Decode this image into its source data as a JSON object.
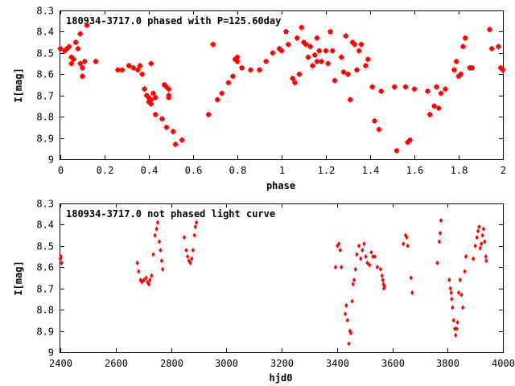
{
  "chart_data": [
    {
      "type": "scatter",
      "title": "180934-3717.0 phased with P=125.60day",
      "xlabel": "phase",
      "ylabel": "I[mag]",
      "xlim": [
        0,
        2
      ],
      "ylim": [
        9,
        8.3
      ],
      "y_inverted": true,
      "xticks": [
        "0",
        "0.2",
        "0.4",
        "0.6",
        "0.8",
        "1",
        "1.2",
        "1.4",
        "1.6",
        "1.8",
        "2"
      ],
      "yticks": [
        "8.3",
        "8.4",
        "8.5",
        "8.6",
        "8.7",
        "8.8",
        "8.9",
        "9"
      ],
      "grid": false,
      "marker_color": "#ff0000",
      "marker": "filled-square-star",
      "points": [
        [
          0.0,
          8.48
        ],
        [
          0.02,
          8.49
        ],
        [
          0.03,
          8.48
        ],
        [
          0.04,
          8.47
        ],
        [
          0.05,
          8.52
        ],
        [
          0.05,
          8.55
        ],
        [
          0.06,
          8.53
        ],
        [
          0.07,
          8.45
        ],
        [
          0.09,
          8.55
        ],
        [
          0.08,
          8.48
        ],
        [
          0.09,
          8.41
        ],
        [
          0.1,
          8.57
        ],
        [
          0.1,
          8.61
        ],
        [
          0.11,
          8.54
        ],
        [
          0.12,
          8.37
        ],
        [
          0.16,
          8.54
        ],
        [
          0.26,
          8.58
        ],
        [
          0.28,
          8.58
        ],
        [
          0.31,
          8.56
        ],
        [
          0.33,
          8.57
        ],
        [
          0.35,
          8.58
        ],
        [
          0.36,
          8.56
        ],
        [
          0.37,
          8.6
        ],
        [
          0.38,
          8.67
        ],
        [
          0.39,
          8.7
        ],
        [
          0.4,
          8.71
        ],
        [
          0.4,
          8.73
        ],
        [
          0.41,
          8.72
        ],
        [
          0.41,
          8.74
        ],
        [
          0.41,
          8.55
        ],
        [
          0.42,
          8.69
        ],
        [
          0.43,
          8.71
        ],
        [
          0.43,
          8.79
        ],
        [
          0.46,
          8.81
        ],
        [
          0.47,
          8.65
        ],
        [
          0.48,
          8.66
        ],
        [
          0.48,
          8.85
        ],
        [
          0.49,
          8.67
        ],
        [
          0.49,
          8.7
        ],
        [
          0.49,
          8.71
        ],
        [
          0.51,
          8.87
        ],
        [
          0.52,
          8.93
        ],
        [
          0.55,
          8.91
        ],
        [
          0.67,
          8.79
        ],
        [
          0.69,
          8.46
        ],
        [
          0.71,
          8.72
        ],
        [
          0.73,
          8.69
        ],
        [
          0.76,
          8.64
        ],
        [
          0.78,
          8.61
        ],
        [
          0.79,
          8.53
        ],
        [
          0.8,
          8.54
        ],
        [
          0.8,
          8.52
        ],
        [
          0.82,
          8.57
        ],
        [
          0.86,
          8.58
        ],
        [
          0.9,
          8.58
        ],
        [
          0.93,
          8.54
        ],
        [
          0.96,
          8.5
        ],
        [
          0.99,
          8.48
        ],
        [
          1.0,
          8.49
        ],
        [
          1.02,
          8.4
        ],
        [
          1.03,
          8.46
        ],
        [
          1.05,
          8.62
        ],
        [
          1.06,
          8.64
        ],
        [
          1.07,
          8.43
        ],
        [
          1.08,
          8.6
        ],
        [
          1.09,
          8.38
        ],
        [
          1.1,
          8.45
        ],
        [
          1.11,
          8.46
        ],
        [
          1.12,
          8.52
        ],
        [
          1.13,
          8.47
        ],
        [
          1.14,
          8.56
        ],
        [
          1.15,
          8.51
        ],
        [
          1.16,
          8.54
        ],
        [
          1.16,
          8.43
        ],
        [
          1.17,
          8.49
        ],
        [
          1.18,
          8.54
        ],
        [
          1.2,
          8.49
        ],
        [
          1.21,
          8.55
        ],
        [
          1.22,
          8.4
        ],
        [
          1.23,
          8.49
        ],
        [
          1.24,
          8.63
        ],
        [
          1.27,
          8.52
        ],
        [
          1.28,
          8.59
        ],
        [
          1.29,
          8.42
        ],
        [
          1.3,
          8.6
        ],
        [
          1.31,
          8.72
        ],
        [
          1.32,
          8.45
        ],
        [
          1.33,
          8.46
        ],
        [
          1.34,
          8.58
        ],
        [
          1.35,
          8.49
        ],
        [
          1.36,
          8.46
        ],
        [
          1.38,
          8.56
        ],
        [
          1.39,
          8.53
        ],
        [
          1.41,
          8.66
        ],
        [
          1.42,
          8.82
        ],
        [
          1.44,
          8.86
        ],
        [
          1.45,
          8.68
        ],
        [
          1.51,
          8.66
        ],
        [
          1.52,
          8.96
        ],
        [
          1.56,
          8.66
        ],
        [
          1.57,
          8.92
        ],
        [
          1.58,
          8.91
        ],
        [
          1.6,
          8.67
        ],
        [
          1.66,
          8.68
        ],
        [
          1.67,
          8.79
        ],
        [
          1.69,
          8.75
        ],
        [
          1.7,
          8.66
        ],
        [
          1.71,
          8.76
        ],
        [
          1.72,
          8.69
        ],
        [
          1.74,
          8.67
        ],
        [
          1.78,
          8.58
        ],
        [
          1.79,
          8.54
        ],
        [
          1.8,
          8.61
        ],
        [
          1.81,
          8.6
        ],
        [
          1.82,
          8.47
        ],
        [
          1.83,
          8.43
        ],
        [
          1.85,
          8.57
        ],
        [
          1.86,
          8.57
        ],
        [
          1.94,
          8.39
        ],
        [
          1.95,
          8.48
        ],
        [
          1.98,
          8.47
        ],
        [
          1.99,
          8.57
        ],
        [
          2.0,
          8.58
        ]
      ]
    },
    {
      "type": "scatter",
      "title": "180934-3717.0 not phased light curve",
      "xlabel": "hjd0",
      "ylabel": "I[mag]",
      "xlim": [
        2400,
        4000
      ],
      "ylim": [
        9,
        8.3
      ],
      "y_inverted": true,
      "xticks": [
        "2400",
        "2600",
        "2800",
        "3000",
        "3200",
        "3400",
        "3600",
        "3800",
        "4000"
      ],
      "yticks": [
        "8.3",
        "8.4",
        "8.5",
        "8.6",
        "8.7",
        "8.8",
        "8.9",
        "9"
      ],
      "grid": false,
      "marker_color": "#ff0000",
      "marker": "small-diamond",
      "points": [
        [
          2400,
          8.56
        ],
        [
          2402,
          8.55
        ],
        [
          2405,
          8.58
        ],
        [
          2678,
          8.58
        ],
        [
          2683,
          8.62
        ],
        [
          2690,
          8.66
        ],
        [
          2695,
          8.67
        ],
        [
          2702,
          8.66
        ],
        [
          2710,
          8.65
        ],
        [
          2715,
          8.67
        ],
        [
          2720,
          8.68
        ],
        [
          2724,
          8.66
        ],
        [
          2730,
          8.64
        ],
        [
          2736,
          8.54
        ],
        [
          2742,
          8.45
        ],
        [
          2748,
          8.42
        ],
        [
          2752,
          8.39
        ],
        [
          2758,
          8.48
        ],
        [
          2762,
          8.52
        ],
        [
          2766,
          8.57
        ],
        [
          2770,
          8.61
        ],
        [
          2848,
          8.46
        ],
        [
          2855,
          8.52
        ],
        [
          2860,
          8.55
        ],
        [
          2865,
          8.57
        ],
        [
          2870,
          8.58
        ],
        [
          2875,
          8.56
        ],
        [
          2880,
          8.52
        ],
        [
          2885,
          8.45
        ],
        [
          2888,
          8.41
        ],
        [
          2892,
          8.39
        ],
        [
          3395,
          8.6
        ],
        [
          3402,
          8.5
        ],
        [
          3407,
          8.49
        ],
        [
          3412,
          8.52
        ],
        [
          3416,
          8.6
        ],
        [
          3430,
          8.82
        ],
        [
          3434,
          8.78
        ],
        [
          3438,
          8.85
        ],
        [
          3443,
          8.96
        ],
        [
          3447,
          8.9
        ],
        [
          3450,
          8.91
        ],
        [
          3455,
          8.76
        ],
        [
          3458,
          8.68
        ],
        [
          3462,
          8.66
        ],
        [
          3467,
          8.61
        ],
        [
          3472,
          8.54
        ],
        [
          3480,
          8.5
        ],
        [
          3486,
          8.56
        ],
        [
          3492,
          8.52
        ],
        [
          3498,
          8.49
        ],
        [
          3504,
          8.55
        ],
        [
          3510,
          8.58
        ],
        [
          3518,
          8.59
        ],
        [
          3524,
          8.53
        ],
        [
          3530,
          8.55
        ],
        [
          3537,
          8.55
        ],
        [
          3546,
          8.6
        ],
        [
          3558,
          8.61
        ],
        [
          3563,
          8.64
        ],
        [
          3566,
          8.66
        ],
        [
          3568,
          8.68
        ],
        [
          3570,
          8.7
        ],
        [
          3572,
          8.69
        ],
        [
          3640,
          8.49
        ],
        [
          3648,
          8.45
        ],
        [
          3652,
          8.46
        ],
        [
          3656,
          8.5
        ],
        [
          3668,
          8.65
        ],
        [
          3672,
          8.72
        ],
        [
          3763,
          8.58
        ],
        [
          3770,
          8.48
        ],
        [
          3773,
          8.44
        ],
        [
          3776,
          8.38
        ],
        [
          3806,
          8.66
        ],
        [
          3810,
          8.7
        ],
        [
          3813,
          8.72
        ],
        [
          3815,
          8.75
        ],
        [
          3818,
          8.79
        ],
        [
          3822,
          8.85
        ],
        [
          3826,
          8.89
        ],
        [
          3829,
          8.92
        ],
        [
          3833,
          8.89
        ],
        [
          3836,
          8.86
        ],
        [
          3840,
          8.72
        ],
        [
          3845,
          8.66
        ],
        [
          3850,
          8.73
        ],
        [
          3855,
          8.79
        ],
        [
          3862,
          8.62
        ],
        [
          3866,
          8.55
        ],
        [
          3893,
          8.56
        ],
        [
          3900,
          8.5
        ],
        [
          3906,
          8.46
        ],
        [
          3910,
          8.43
        ],
        [
          3914,
          8.41
        ],
        [
          3918,
          8.51
        ],
        [
          3922,
          8.49
        ],
        [
          3926,
          8.45
        ],
        [
          3930,
          8.42
        ],
        [
          3934,
          8.48
        ],
        [
          3938,
          8.55
        ],
        [
          3940,
          8.57
        ]
      ]
    }
  ]
}
